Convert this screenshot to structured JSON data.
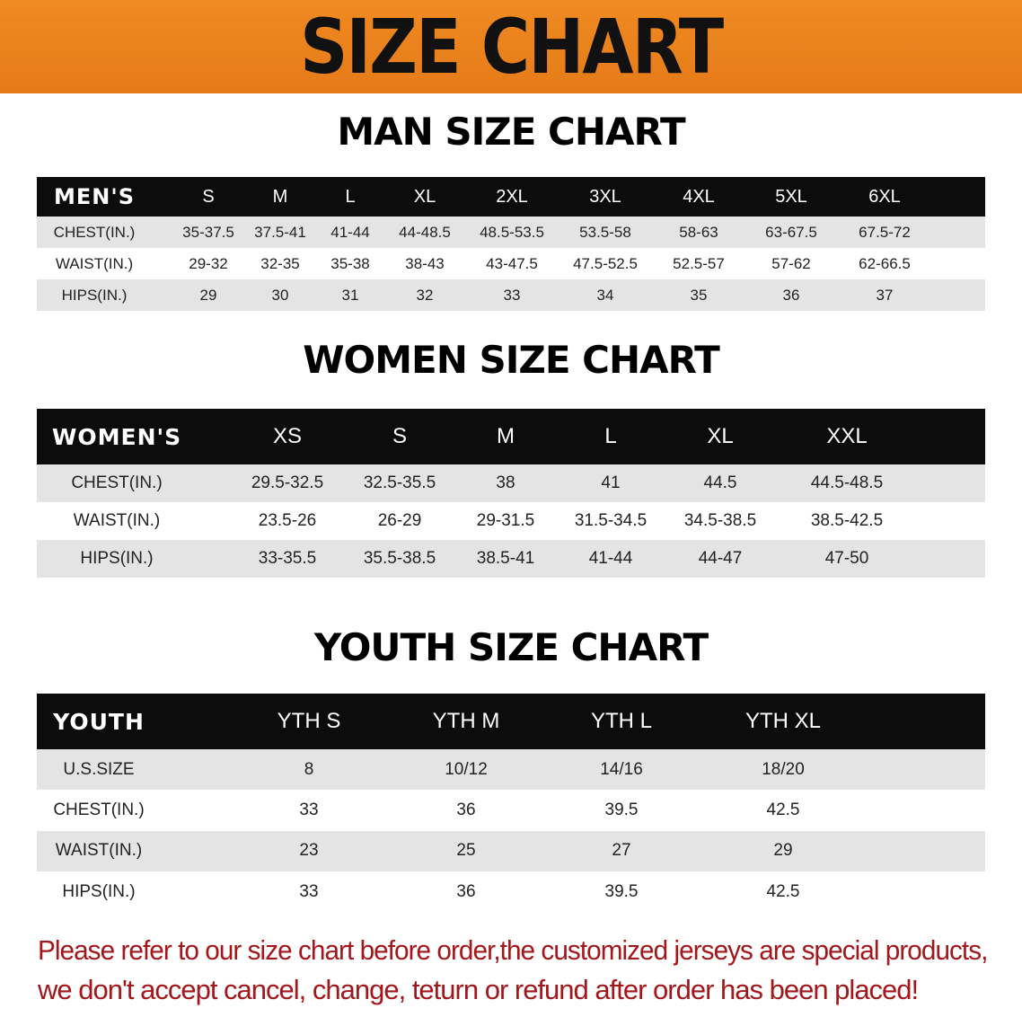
{
  "banner_title": "SIZE CHART",
  "men": {
    "title": "MAN SIZE CHART",
    "header": [
      "MEN'S",
      "S",
      "M",
      "L",
      "XL",
      "2XL",
      "3XL",
      "4XL",
      "5XL",
      "6XL"
    ],
    "rows": [
      [
        "CHEST(IN.)",
        "35-37.5",
        "37.5-41",
        "41-44",
        "44-48.5",
        "48.5-53.5",
        "53.5-58",
        "58-63",
        "63-67.5",
        "67.5-72"
      ],
      [
        "WAIST(IN.)",
        "29-32",
        "32-35",
        "35-38",
        "38-43",
        "43-47.5",
        "47.5-52.5",
        "52.5-57",
        "57-62",
        "62-66.5"
      ],
      [
        "HIPS(IN.)",
        "29",
        "30",
        "31",
        "32",
        "33",
        "34",
        "35",
        "36",
        "37"
      ]
    ]
  },
  "women": {
    "title": "WOMEN SIZE CHART",
    "header": [
      "WOMEN'S",
      "XS",
      "S",
      "M",
      "L",
      "XL",
      "XXL"
    ],
    "rows": [
      [
        "CHEST(IN.)",
        "29.5-32.5",
        "32.5-35.5",
        "38",
        "41",
        "44.5",
        "44.5-48.5"
      ],
      [
        "WAIST(IN.)",
        "23.5-26",
        "26-29",
        "29-31.5",
        "31.5-34.5",
        "34.5-38.5",
        "38.5-42.5"
      ],
      [
        "HIPS(IN.)",
        "33-35.5",
        "35.5-38.5",
        "38.5-41",
        "41-44",
        "44-47",
        "47-50"
      ]
    ]
  },
  "youth": {
    "title": "YOUTH SIZE CHART",
    "header": [
      "YOUTH",
      "YTH S",
      "YTH M",
      "YTH L",
      "YTH XL"
    ],
    "rows": [
      [
        "U.S.SIZE",
        "8",
        "10/12",
        "14/16",
        "18/20"
      ],
      [
        "CHEST(IN.)",
        "33",
        "36",
        "39.5",
        "42.5"
      ],
      [
        "WAIST(IN.)",
        "23",
        "25",
        "27",
        "29"
      ],
      [
        "HIPS(IN.)",
        "33",
        "36",
        "39.5",
        "42.5"
      ]
    ]
  },
  "note": {
    "line1": "Please refer to our size chart before order,the customized jerseys are special products,",
    "line2": "we don't accept cancel, change, teturn or refund after order has been placed!"
  },
  "colors": {
    "banner": "#e8801e",
    "header_bg": "#0c0c0c",
    "row_gray": "#e4e4e4",
    "note": "#a3171b"
  }
}
